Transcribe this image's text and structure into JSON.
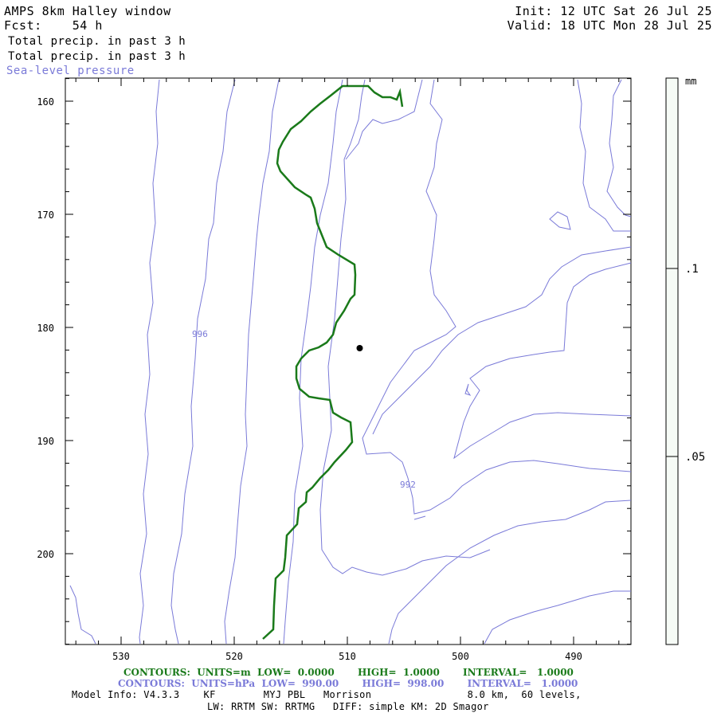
{
  "header": {
    "title": "AMPS 8km Halley window",
    "forecast": "Fcst:    54 h",
    "init": "Init: 12 UTC Sat 26 Jul 25",
    "valid": "Valid: 18 UTC Mon 28 Jul 25",
    "field1": "Total precip. in past 3 h",
    "field2": "Total precip. in past 3 h",
    "field3": "Sea-level pressure"
  },
  "colors": {
    "contour_blue": "#7a7ad8",
    "contour_green": "#1a7a1a",
    "frame": "#000000"
  },
  "axes": {
    "y_ticks": [
      "160",
      "170",
      "180",
      "190",
      "200"
    ],
    "x_ticks": [
      "530",
      "520",
      "510",
      "500",
      "490"
    ]
  },
  "contour_labels": [
    "996",
    "992"
  ],
  "colorbar": {
    "unit": "mm",
    "labels": [
      ".1",
      ".05"
    ]
  },
  "footer": {
    "green_line": "CONTOURS:  UNITS=m  LOW=  0.0000       HIGH=  1.0000       INTERVAL=   1.0000",
    "blue_line": "CONTOURS:  UNITS=hPa  LOW=  990.00       HIGH=  998.00       INTERVAL=   1.0000",
    "model_info": "Model Info: V4.3.3    KF        MYJ PBL   Morrison                8.0 km,  60 levels,",
    "model_info2": "LW: RRTM SW: RRTMG   DIFF: simple KM: 2D Smagor"
  }
}
